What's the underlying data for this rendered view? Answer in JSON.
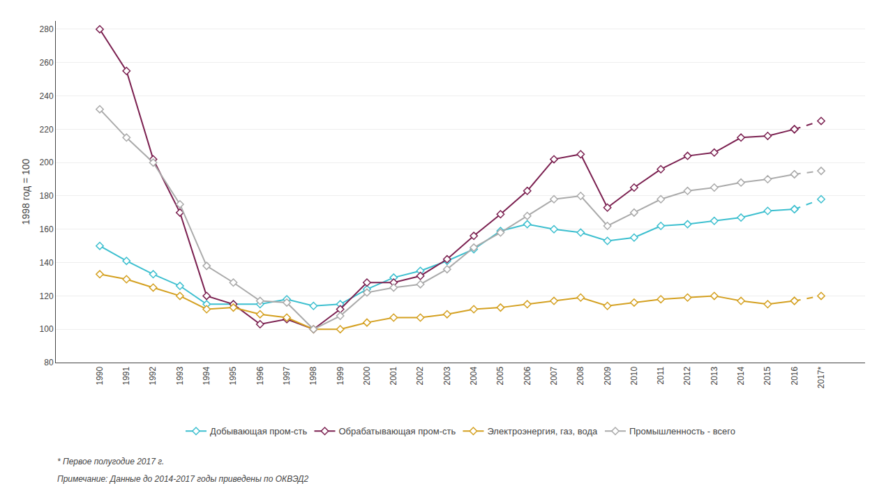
{
  "chart_data": {
    "type": "line",
    "categories": [
      "1990",
      "1991",
      "1992",
      "1993",
      "1994",
      "1995",
      "1996",
      "1997",
      "1998",
      "1999",
      "2000",
      "2001",
      "2002",
      "2003",
      "2004",
      "2005",
      "2006",
      "2007",
      "2008",
      "2009",
      "2010",
      "2011",
      "2012",
      "2013",
      "2014",
      "2015",
      "2016",
      "2017*"
    ],
    "series": [
      {
        "name": "Добывающая пром-сть",
        "color": "#3cbfcf",
        "values": [
          150,
          141,
          133,
          126,
          115,
          115,
          115,
          118,
          114,
          115,
          124,
          131,
          135,
          141,
          148,
          159,
          163,
          160,
          158,
          153,
          155,
          162,
          163,
          165,
          167,
          171,
          172,
          178
        ]
      },
      {
        "name": "Обрабатывающая пром-сть",
        "color": "#7b2050",
        "values": [
          280,
          255,
          202,
          170,
          120,
          115,
          103,
          106,
          100,
          112,
          128,
          128,
          132,
          142,
          156,
          169,
          183,
          202,
          205,
          173,
          185,
          196,
          204,
          206,
          215,
          216,
          220,
          225
        ]
      },
      {
        "name": "Электроэнергия, газ, вода",
        "color": "#d4a020",
        "values": [
          133,
          130,
          125,
          120,
          112,
          113,
          109,
          107,
          100,
          100,
          104,
          107,
          107,
          109,
          112,
          113,
          115,
          117,
          119,
          114,
          116,
          118,
          119,
          120,
          117,
          115,
          117,
          120
        ]
      },
      {
        "name": "Промышленность - всего",
        "color": "#aaaaaa",
        "values": [
          232,
          215,
          200,
          175,
          138,
          128,
          117,
          116,
          100,
          108,
          122,
          125,
          127,
          136,
          149,
          158,
          168,
          178,
          180,
          162,
          170,
          178,
          183,
          185,
          188,
          190,
          193,
          195
        ]
      }
    ],
    "ylabel": "1998 год = 100",
    "ylim": [
      80,
      285
    ],
    "yticks": [
      80,
      100,
      120,
      140,
      160,
      180,
      200,
      220,
      240,
      260,
      280
    ],
    "grid": true,
    "marker": "diamond",
    "legend": "bottom",
    "annotations": [
      "* Первое полугодие 2017 г.",
      "Примечание: Данные до 2014-2017 годы приведены по ОКВЭД2"
    ]
  }
}
